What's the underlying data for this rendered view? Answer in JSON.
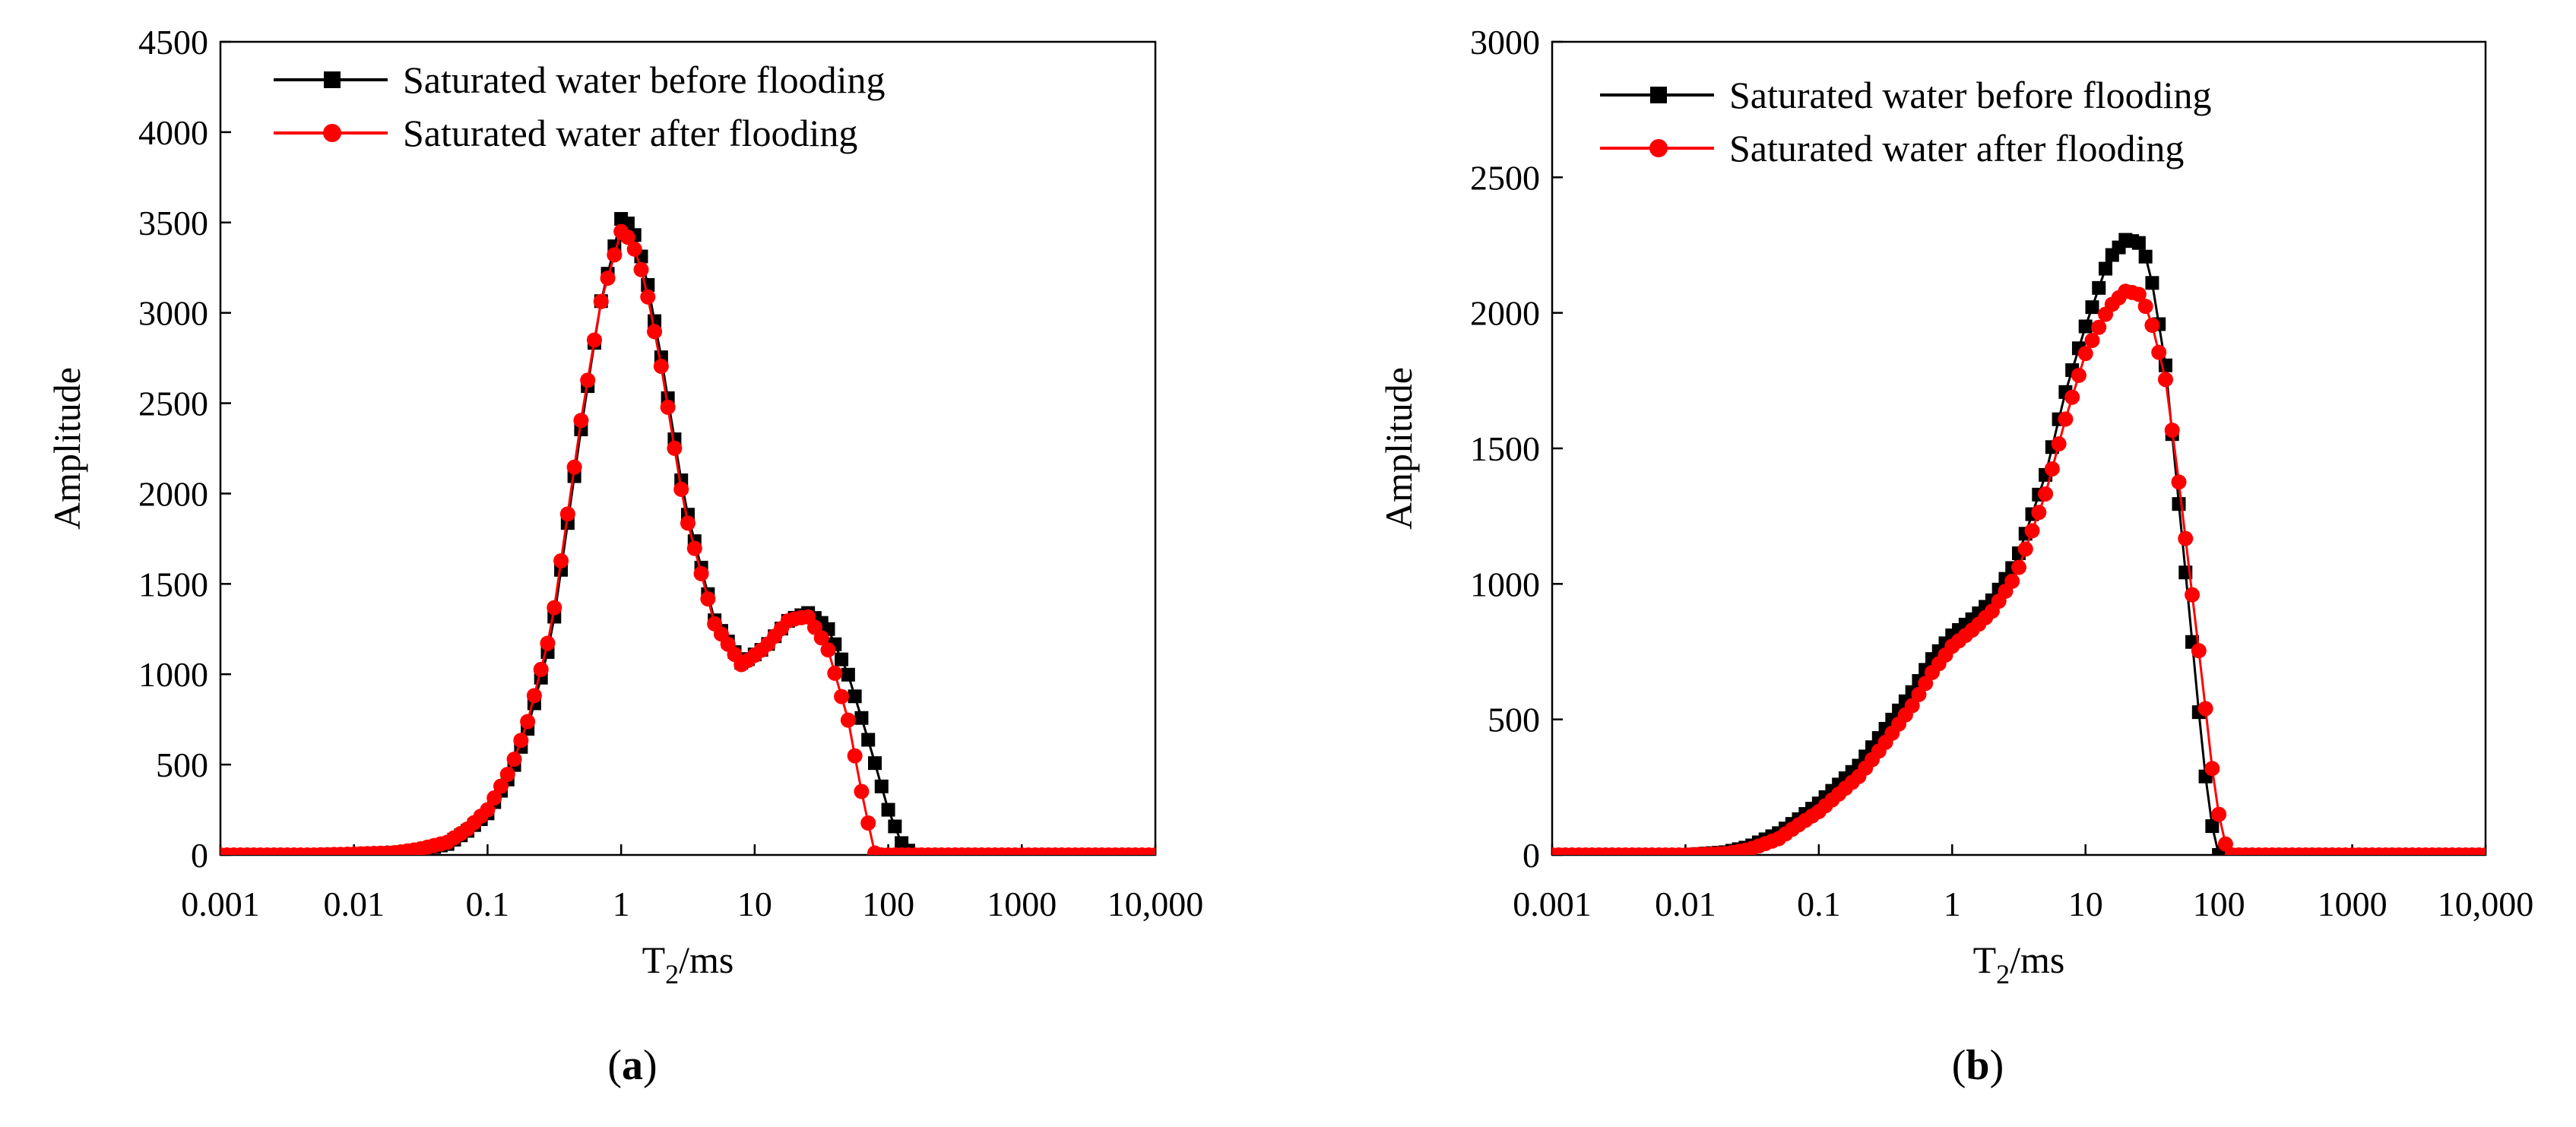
{
  "chart_data": [
    {
      "type": "scatter",
      "panel_label": "a",
      "xscale": "log",
      "xlim": [
        0.001,
        10000
      ],
      "ylim": [
        0,
        4500
      ],
      "xlabel": "T2/ms",
      "xlabel_main": "T",
      "xlabel_sub": "2",
      "xlabel_rest": "/ms",
      "ylabel": "Amplitude",
      "xtick_labels": [
        "0.001",
        "0.01",
        "0.1",
        "1",
        "10",
        "100",
        "1000",
        "10,000"
      ],
      "ytick_labels": [
        "0",
        "500",
        "1000",
        "1500",
        "2000",
        "2500",
        "3000",
        "3500",
        "4000",
        "4500"
      ],
      "legend_position": "top-left",
      "series": [
        {
          "name": "Saturated water before flooding",
          "color": "#000000",
          "marker": "square",
          "x": [
            0.001,
            0.005,
            0.01,
            0.02,
            0.03,
            0.05,
            0.07,
            0.1,
            0.15,
            0.2,
            0.3,
            0.5,
            0.7,
            1.0,
            1.2,
            1.5,
            2,
            3,
            5,
            8,
            12,
            18,
            25,
            35,
            50,
            70,
            100,
            130,
            160,
            1000,
            10000
          ],
          "y": [
            0,
            0,
            5,
            12,
            25,
            60,
            130,
            230,
            450,
            700,
            1200,
            2350,
            3050,
            3520,
            3480,
            3250,
            2750,
            1950,
            1300,
            1060,
            1150,
            1300,
            1340,
            1260,
            1000,
            650,
            250,
            40,
            0,
            0,
            0
          ]
        },
        {
          "name": "Saturated water after flooding",
          "color": "#ff0000",
          "marker": "circle",
          "x": [
            0.001,
            0.005,
            0.01,
            0.02,
            0.03,
            0.05,
            0.07,
            0.1,
            0.15,
            0.2,
            0.3,
            0.5,
            0.7,
            1.0,
            1.2,
            1.5,
            2,
            3,
            5,
            8,
            12,
            18,
            25,
            35,
            50,
            65,
            80,
            1000,
            10000
          ],
          "y": [
            0,
            0,
            5,
            12,
            30,
            70,
            140,
            250,
            480,
            740,
            1250,
            2400,
            3050,
            3450,
            3400,
            3180,
            2700,
            1900,
            1280,
            1050,
            1150,
            1300,
            1320,
            1150,
            750,
            300,
            0,
            0,
            0
          ]
        }
      ]
    },
    {
      "type": "scatter",
      "panel_label": "b",
      "xscale": "log",
      "xlim": [
        0.001,
        10000
      ],
      "ylim": [
        0,
        3000
      ],
      "xlabel": "T2/ms",
      "xlabel_main": "T",
      "xlabel_sub": "2",
      "xlabel_rest": "/ms",
      "ylabel": "Amplitude",
      "xtick_labels": [
        "0.001",
        "0.01",
        "0.1",
        "1",
        "10",
        "100",
        "1000",
        "10,000"
      ],
      "ytick_labels": [
        "0",
        "500",
        "1000",
        "1500",
        "2000",
        "2500",
        "3000"
      ],
      "legend_position": "top-left",
      "series": [
        {
          "name": "Saturated water before flooding",
          "color": "#000000",
          "marker": "square",
          "x": [
            0.001,
            0.01,
            0.02,
            0.03,
            0.05,
            0.07,
            0.1,
            0.2,
            0.3,
            0.5,
            0.7,
            1.0,
            1.5,
            2,
            3,
            5,
            7,
            10,
            15,
            20,
            25,
            30,
            40,
            50,
            60,
            70,
            85,
            100,
            1000,
            10000
          ],
          "y": [
            0,
            0,
            10,
            30,
            80,
            130,
            190,
            330,
            450,
            600,
            720,
            810,
            880,
            940,
            1080,
            1400,
            1700,
            1950,
            2200,
            2270,
            2260,
            2180,
            1800,
            1300,
            900,
            550,
            150,
            0,
            0,
            0
          ]
        },
        {
          "name": "Saturated water after flooding",
          "color": "#ff0000",
          "marker": "circle",
          "x": [
            0.001,
            0.01,
            0.02,
            0.03,
            0.05,
            0.07,
            0.1,
            0.2,
            0.3,
            0.5,
            0.7,
            1.0,
            1.5,
            2,
            3,
            5,
            7,
            10,
            15,
            20,
            25,
            30,
            40,
            50,
            60,
            75,
            90,
            105,
            120,
            1000,
            10000
          ],
          "y": [
            0,
            0,
            5,
            20,
            60,
            110,
            160,
            290,
            400,
            550,
            670,
            770,
            840,
            900,
            1030,
            1330,
            1600,
            1850,
            2020,
            2080,
            2070,
            2000,
            1750,
            1380,
            1050,
            650,
            300,
            80,
            0,
            0,
            0
          ]
        }
      ]
    }
  ]
}
